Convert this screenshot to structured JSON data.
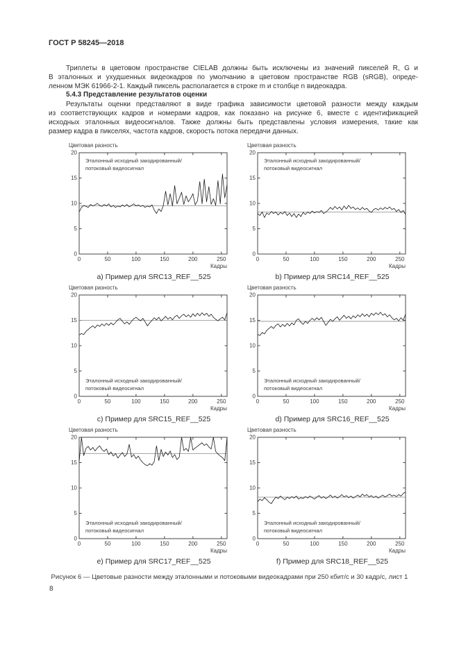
{
  "page": {
    "header": "ГОСТ Р 58245—2018",
    "page_number": "8"
  },
  "body": {
    "para1_lines": [
      "Триплеты в цветовом пространстве CIELAB должны быть исключены из значений пикселей R, G и",
      "B эталонных и ухудшенных видеокадров по умолчанию в цветовом пространстве RGB (sRGB), опреде-",
      "ленном МЭК 61966-2-1. Каждый пиксель располагается в строке m и столбце n видеокадра."
    ],
    "heading_543": "5.4.3 Представление результатов оценки",
    "para2_lines": [
      "Результаты оценки представляют в виде графика зависимости цветовой разности между каждым",
      "из соответствующих кадров и номерами кадров, как показано на рисунке 6, вместе с идентификацией",
      "исходных эталонных видеосигналов. Также должны быть представлены условия измерения, такие как",
      "размер кадра в пикселях, частота кадров, скорость потока передачи данных."
    ],
    "figure_caption": "Рисунок 6 — Цветовые разности между эталонными и потоковыми видеокадрами при 250 кбит/с и 30 кадр/с, лист 1"
  },
  "chart_data": [
    {
      "type": "line",
      "caption": "a) Пример для SRC13_REF__525",
      "ylabel": "Цветовая разность",
      "xlabel": "Кадры",
      "xlim": [
        0,
        260
      ],
      "ylim": [
        0,
        20
      ],
      "xticks": [
        0,
        50,
        100,
        150,
        200,
        250
      ],
      "yticks": [
        0,
        5,
        10,
        15,
        20
      ],
      "legend_lines": [
        "Эталонный исходный закодированный/",
        "потоковый видеосигнал"
      ],
      "legend_pos": "top",
      "mean_line": 9.5,
      "x_step": 4,
      "values": [
        8.3,
        9.2,
        9.6,
        9.4,
        9.2,
        9.8,
        9.5,
        9.7,
        10.0,
        9.6,
        9.4,
        9.8,
        9.5,
        9.9,
        9.3,
        9.6,
        9.2,
        9.5,
        9.3,
        9.7,
        9.4,
        9.8,
        9.3,
        9.6,
        9.9,
        9.5,
        9.7,
        9.4,
        9.6,
        9.2,
        9.5,
        9.3,
        9.7,
        8.7,
        8.0,
        8.9,
        8.4,
        9.6,
        12.4,
        9.7,
        11.9,
        9.5,
        13.5,
        9.9,
        11.0,
        12.2,
        9.8,
        11.5,
        10.3,
        11.0,
        11.9,
        9.7,
        10.5,
        14.3,
        9.9,
        14.8,
        10.3,
        13.3,
        9.8,
        10.9,
        9.6,
        14.5,
        9.9,
        15.8,
        11.1,
        13.7
      ]
    },
    {
      "type": "line",
      "caption": "b) Пример для SRC14_REF__525",
      "ylabel": "Цветовая разность",
      "xlabel": "Кадры",
      "xlim": [
        0,
        260
      ],
      "ylim": [
        0,
        20
      ],
      "xticks": [
        0,
        50,
        100,
        150,
        200,
        250
      ],
      "yticks": [
        0,
        5,
        10,
        15,
        20
      ],
      "legend_lines": [
        "Эталонный исходный закодированный/",
        "потоковый видеосигнал"
      ],
      "legend_pos": "top",
      "mean_line": 8.3,
      "x_step": 4,
      "values": [
        8.0,
        7.6,
        8.3,
        7.2,
        8.1,
        7.8,
        8.4,
        8.0,
        8.3,
        7.7,
        8.2,
        7.9,
        8.4,
        7.6,
        8.1,
        7.4,
        8.0,
        7.2,
        7.9,
        7.4,
        8.2,
        7.8,
        8.3,
        8.0,
        8.5,
        8.1,
        8.4,
        8.2,
        8.6,
        8.0,
        8.3,
        8.7,
        9.2,
        8.8,
        9.4,
        8.9,
        9.3,
        8.7,
        9.5,
        8.9,
        9.6,
        9.0,
        9.3,
        8.8,
        9.1,
        8.7,
        9.2,
        8.8,
        9.0,
        8.5,
        8.2,
        8.8,
        9.0,
        8.7,
        9.1,
        8.8,
        9.2,
        8.9,
        9.3,
        8.8,
        9.0,
        8.4,
        8.8,
        8.2,
        8.6,
        7.8
      ]
    },
    {
      "type": "line",
      "caption": "c) Пример для SRC15_REF__525",
      "ylabel": "Цветовая разность",
      "xlabel": "Кадры",
      "xlim": [
        0,
        260
      ],
      "ylim": [
        0,
        20
      ],
      "xticks": [
        0,
        50,
        100,
        150,
        200,
        250
      ],
      "yticks": [
        0,
        5,
        10,
        15,
        20
      ],
      "legend_lines": [
        "Эталонный исходный закодированный/",
        "потоковый видеосигнал"
      ],
      "legend_pos": "bottom",
      "mean_line": 15.0,
      "x_step": 4,
      "values": [
        12.1,
        12.4,
        12.2,
        12.8,
        13.2,
        13.6,
        13.9,
        13.5,
        14.1,
        13.8,
        14.3,
        13.9,
        14.4,
        14.0,
        14.5,
        14.1,
        14.6,
        15.1,
        15.4,
        14.8,
        14.3,
        14.7,
        14.2,
        14.8,
        15.3,
        15.6,
        15.2,
        14.9,
        15.4,
        14.7,
        13.9,
        14.5,
        15.0,
        15.5,
        15.1,
        15.6,
        14.9,
        15.3,
        15.8,
        15.2,
        15.6,
        15.1,
        15.7,
        16.0,
        15.4,
        15.9,
        16.2,
        15.7,
        16.1,
        15.6,
        16.3,
        15.8,
        16.4,
        15.9,
        16.5,
        16.0,
        16.4,
        15.8,
        16.2,
        15.6,
        15.2,
        14.9,
        15.3,
        15.6,
        15.1,
        16.5
      ]
    },
    {
      "type": "line",
      "caption": "d) Пример для SRC16_REF__525",
      "ylabel": "Цветовая разность",
      "xlabel": "Кадры",
      "xlim": [
        0,
        260
      ],
      "ylim": [
        0,
        20
      ],
      "xticks": [
        0,
        50,
        100,
        150,
        200,
        250
      ],
      "yticks": [
        0,
        5,
        10,
        15,
        20
      ],
      "legend_lines": [
        "Эталонный исходный закодированный/",
        "потоковый видеосигнал"
      ],
      "legend_pos": "bottom",
      "mean_line": 14.8,
      "x_step": 4,
      "values": [
        12.2,
        12.0,
        12.6,
        12.3,
        13.0,
        13.4,
        13.8,
        13.4,
        14.0,
        14.3,
        13.7,
        14.2,
        13.8,
        14.4,
        13.9,
        14.5,
        14.1,
        15.0,
        15.3,
        14.6,
        14.2,
        14.8,
        14.4,
        15.0,
        15.4,
        15.0,
        15.5,
        15.1,
        15.6,
        14.8,
        14.0,
        14.6,
        15.2,
        14.8,
        15.3,
        15.7,
        15.0,
        15.5,
        16.0,
        15.4,
        15.8,
        15.3,
        15.9,
        15.5,
        16.1,
        15.7,
        16.3,
        15.8,
        16.2,
        15.7,
        16.4,
        16.0,
        16.5,
        16.1,
        16.6,
        16.0,
        16.3,
        15.7,
        16.1,
        15.5,
        15.1,
        15.4,
        14.9,
        15.5,
        15.0,
        16.2
      ]
    },
    {
      "type": "line",
      "caption": "e) Пример для SRC17_REF__525",
      "ylabel": "Цветовая разность",
      "xlabel": "Кадры",
      "xlim": [
        0,
        260
      ],
      "ylim": [
        0,
        20
      ],
      "xticks": [
        0,
        50,
        100,
        150,
        200,
        250
      ],
      "yticks": [
        0,
        5,
        10,
        15,
        20
      ],
      "legend_lines": [
        "Эталонный исходный закодированный/",
        "потоковый видеосигнал"
      ],
      "legend_pos": "bottom",
      "mean_line": 16.8,
      "x_step": 4,
      "values": [
        15.2,
        20.0,
        16.4,
        17.8,
        18.2,
        17.5,
        18.0,
        17.3,
        17.9,
        18.3,
        17.6,
        17.2,
        17.7,
        16.6,
        17.1,
        16.3,
        16.8,
        15.9,
        16.5,
        17.0,
        16.2,
        16.7,
        18.6,
        16.1,
        16.6,
        15.8,
        16.3,
        15.5,
        15.0,
        14.6,
        14.4,
        14.8,
        14.5,
        15.2,
        18.3,
        15.4,
        17.6,
        16.2,
        17.1,
        16.5,
        17.3,
        16.0,
        16.6,
        15.6,
        16.1,
        20.0,
        17.4,
        17.8,
        17.2,
        20.0,
        17.5,
        17.9,
        18.2,
        18.6,
        18.9,
        18.4,
        18.7,
        18.1,
        17.7,
        20.0,
        17.2,
        16.7,
        16.3,
        16.0,
        15.4,
        20.0
      ]
    },
    {
      "type": "line",
      "caption": "f) Пример для SRC18_REF__525",
      "ylabel": "Цветовая разность",
      "xlabel": "Кадры",
      "xlim": [
        0,
        260
      ],
      "ylim": [
        0,
        20
      ],
      "xticks": [
        0,
        50,
        100,
        150,
        200,
        250
      ],
      "yticks": [
        0,
        5,
        10,
        15,
        20
      ],
      "legend_lines": [
        "Эталонный исходный закодированный/",
        "потоковый видеосигнал"
      ],
      "legend_pos": "bottom",
      "mean_line": 8.2,
      "x_step": 4,
      "values": [
        7.3,
        7.8,
        7.5,
        8.1,
        7.7,
        7.2,
        6.9,
        7.6,
        8.2,
        7.9,
        8.4,
        8.0,
        7.7,
        8.2,
        7.9,
        8.3,
        8.0,
        8.4,
        7.8,
        8.1,
        7.9,
        8.3,
        8.0,
        8.4,
        8.1,
        7.8,
        8.2,
        8.5,
        8.0,
        8.3,
        7.9,
        8.2,
        8.6,
        8.1,
        8.4,
        8.0,
        8.3,
        8.7,
        8.2,
        8.5,
        8.1,
        8.4,
        8.0,
        8.3,
        8.6,
        8.2,
        8.8,
        8.4,
        8.7,
        8.2,
        8.5,
        8.1,
        8.4,
        8.0,
        8.3,
        8.6,
        8.2,
        8.5,
        8.8,
        8.4,
        8.6,
        8.3,
        8.7,
        8.4,
        8.9,
        9.2
      ]
    }
  ]
}
